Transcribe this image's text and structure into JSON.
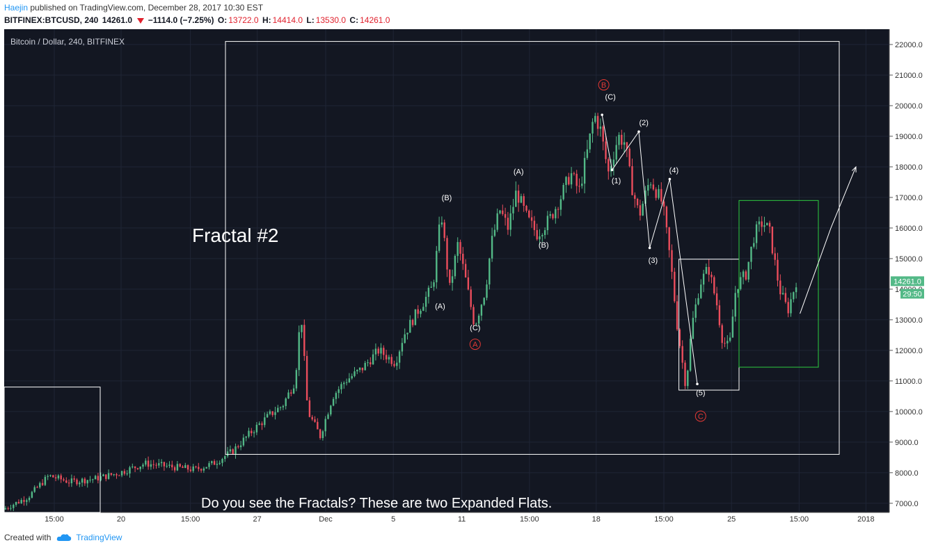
{
  "header": {
    "author": "Haejin",
    "published_text": " published on TradingView.com, December 28, 2017 10:30 EST",
    "symbol": "BITFINEX:BTCUSD, 240",
    "last": "14261.0",
    "change": "−1114.0 (−7.25%)",
    "o_label": "O:",
    "o_val": "13722.0",
    "h_label": "H:",
    "h_val": "14414.0",
    "l_label": "L:",
    "l_val": "13530.0",
    "c_label": "C:",
    "c_val": "14261.0"
  },
  "footer": {
    "created_with": "Created with",
    "brand": "TradingView"
  },
  "colors": {
    "bg": "#131722",
    "up": "#53b987",
    "down": "#eb4d5c",
    "label_red": "#e53935",
    "box_green": "#2ecc40"
  },
  "chart_data": {
    "type": "candlestick",
    "title": "Bitcoin / Dollar, 240, BITFINEX",
    "annotation_title": "Fractal #2",
    "caption": "Do you see the Fractals? These are two Expanded Flats.",
    "ylim": [
      6700,
      22500
    ],
    "y_ticks": [
      7000,
      8000,
      9000,
      10000,
      11000,
      12000,
      13000,
      14000,
      15000,
      16000,
      17000,
      18000,
      19000,
      20000,
      21000,
      22000
    ],
    "x_ticks": [
      {
        "label": "15:00",
        "x": 0.06
      },
      {
        "label": "20",
        "x": 0.14
      },
      {
        "label": "15:00",
        "x": 0.223
      },
      {
        "label": "27",
        "x": 0.303
      },
      {
        "label": "Dec",
        "x": 0.385
      },
      {
        "label": "5",
        "x": 0.466
      },
      {
        "label": "11",
        "x": 0.548
      },
      {
        "label": "15:00",
        "x": 0.629
      },
      {
        "label": "18",
        "x": 0.709
      },
      {
        "label": "15:00",
        "x": 0.79
      },
      {
        "label": "25",
        "x": 0.871
      },
      {
        "label": "15:00",
        "x": 0.952
      },
      {
        "label": "2018",
        "x": 1.032
      }
    ],
    "price_badge": "14261.0",
    "timer_badge": "29:50",
    "last_price": 14261,
    "price_path": [
      [
        0.0,
        6800
      ],
      [
        0.03,
        7200
      ],
      [
        0.055,
        7900
      ],
      [
        0.08,
        7700
      ],
      [
        0.11,
        7800
      ],
      [
        0.14,
        8000
      ],
      [
        0.17,
        8300
      ],
      [
        0.2,
        8200
      ],
      [
        0.23,
        8100
      ],
      [
        0.252,
        8300
      ],
      [
        0.275,
        8700
      ],
      [
        0.3,
        9400
      ],
      [
        0.32,
        9900
      ],
      [
        0.335,
        10200
      ],
      [
        0.35,
        11000
      ],
      [
        0.357,
        13300
      ],
      [
        0.365,
        10000
      ],
      [
        0.38,
        9200
      ],
      [
        0.395,
        10500
      ],
      [
        0.41,
        11000
      ],
      [
        0.43,
        11400
      ],
      [
        0.45,
        12000
      ],
      [
        0.47,
        11600
      ],
      [
        0.48,
        12500
      ],
      [
        0.495,
        13200
      ],
      [
        0.515,
        14100
      ],
      [
        0.525,
        16500
      ],
      [
        0.535,
        14000
      ],
      [
        0.545,
        15500
      ],
      [
        0.555,
        14200
      ],
      [
        0.565,
        12800
      ],
      [
        0.578,
        14000
      ],
      [
        0.585,
        15500
      ],
      [
        0.595,
        16600
      ],
      [
        0.605,
        16000
      ],
      [
        0.615,
        17200
      ],
      [
        0.628,
        16300
      ],
      [
        0.64,
        15800
      ],
      [
        0.655,
        16300
      ],
      [
        0.668,
        17000
      ],
      [
        0.68,
        17800
      ],
      [
        0.69,
        17200
      ],
      [
        0.7,
        18500
      ],
      [
        0.708,
        19700
      ],
      [
        0.715,
        19300
      ],
      [
        0.725,
        17800
      ],
      [
        0.737,
        19000
      ],
      [
        0.745,
        18800
      ],
      [
        0.752,
        17500
      ],
      [
        0.762,
        16400
      ],
      [
        0.775,
        17600
      ],
      [
        0.79,
        16800
      ],
      [
        0.8,
        14800
      ],
      [
        0.808,
        12700
      ],
      [
        0.818,
        10800
      ],
      [
        0.825,
        12800
      ],
      [
        0.835,
        14200
      ],
      [
        0.845,
        14700
      ],
      [
        0.855,
        13500
      ],
      [
        0.862,
        12300
      ],
      [
        0.87,
        12100
      ],
      [
        0.878,
        14100
      ],
      [
        0.89,
        14500
      ],
      [
        0.9,
        15800
      ],
      [
        0.91,
        16200
      ],
      [
        0.918,
        15900
      ],
      [
        0.93,
        14000
      ],
      [
        0.94,
        13300
      ],
      [
        0.95,
        14261
      ]
    ],
    "boxes": [
      {
        "name": "fractal1",
        "x0": 0.0,
        "x1": 0.115,
        "y0": 6700,
        "y1": 10800,
        "color": "#ffffff"
      },
      {
        "name": "fractal2",
        "x0": 0.265,
        "x1": 1.0,
        "y0": 8600,
        "y1": 22100,
        "color": "#ffffff"
      },
      {
        "name": "flat-small-white",
        "x0": 0.808,
        "x1": 0.88,
        "y0": 10700,
        "y1": 14980,
        "color": "#ffffff"
      },
      {
        "name": "flat-small-green",
        "x0": 0.88,
        "x1": 0.975,
        "y0": 11450,
        "y1": 16900,
        "color": "#2ecc40"
      }
    ],
    "wave_lines": [
      [
        [
          0.716,
          19700
        ],
        [
          0.728,
          17900
        ],
        [
          0.76,
          19150
        ],
        [
          0.773,
          15350
        ],
        [
          0.797,
          17600
        ],
        [
          0.83,
          10900
        ]
      ],
      [
        [
          0.953,
          13200
        ],
        [
          0.99,
          16000
        ],
        [
          1.02,
          18000
        ]
      ]
    ],
    "labels": [
      {
        "text": "(B)",
        "x": 0.53,
        "y": 17000,
        "color": "#ffffff"
      },
      {
        "text": "(A)",
        "x": 0.522,
        "y": 13450,
        "color": "#ffffff"
      },
      {
        "text": "(C)",
        "x": 0.564,
        "y": 12750,
        "color": "#ffffff"
      },
      {
        "text": "A",
        "x": 0.564,
        "y": 12200,
        "color": "#e53935",
        "circle": true
      },
      {
        "text": "(A)",
        "x": 0.616,
        "y": 17850,
        "color": "#ffffff"
      },
      {
        "text": "(B)",
        "x": 0.646,
        "y": 15450,
        "color": "#ffffff"
      },
      {
        "text": "B",
        "x": 0.718,
        "y": 20680,
        "color": "#e53935",
        "circle": true
      },
      {
        "text": "(C)",
        "x": 0.726,
        "y": 20300,
        "color": "#ffffff"
      },
      {
        "text": "(2)",
        "x": 0.766,
        "y": 19450,
        "color": "#ffffff"
      },
      {
        "text": "(1)",
        "x": 0.733,
        "y": 17550,
        "color": "#ffffff"
      },
      {
        "text": "(4)",
        "x": 0.802,
        "y": 17900,
        "color": "#ffffff"
      },
      {
        "text": "(3)",
        "x": 0.777,
        "y": 14950,
        "color": "#ffffff"
      },
      {
        "text": "(5)",
        "x": 0.834,
        "y": 10620,
        "color": "#ffffff"
      },
      {
        "text": "C",
        "x": 0.834,
        "y": 9850,
        "color": "#e53935",
        "circle": true
      }
    ]
  }
}
